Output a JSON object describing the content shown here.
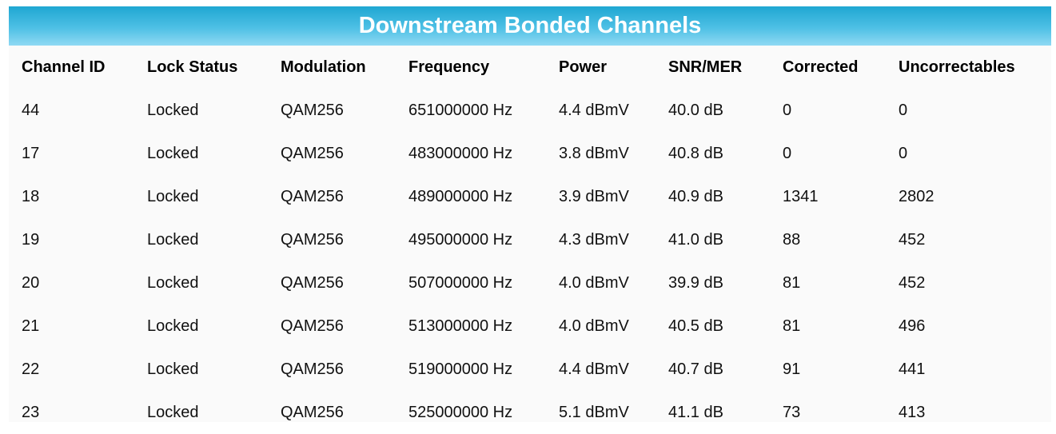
{
  "title": "Downstream Bonded Channels",
  "columns": [
    "Channel ID",
    "Lock Status",
    "Modulation",
    "Frequency",
    "Power",
    "SNR/MER",
    "Corrected",
    "Uncorrectables"
  ],
  "rows": [
    [
      "44",
      "Locked",
      "QAM256",
      "651000000 Hz",
      "4.4 dBmV",
      "40.0 dB",
      "0",
      "0"
    ],
    [
      "17",
      "Locked",
      "QAM256",
      "483000000 Hz",
      "3.8 dBmV",
      "40.8 dB",
      "0",
      "0"
    ],
    [
      "18",
      "Locked",
      "QAM256",
      "489000000 Hz",
      "3.9 dBmV",
      "40.9 dB",
      "1341",
      "2802"
    ],
    [
      "19",
      "Locked",
      "QAM256",
      "495000000 Hz",
      "4.3 dBmV",
      "41.0 dB",
      "88",
      "452"
    ],
    [
      "20",
      "Locked",
      "QAM256",
      "507000000 Hz",
      "4.0 dBmV",
      "39.9 dB",
      "81",
      "452"
    ],
    [
      "21",
      "Locked",
      "QAM256",
      "513000000 Hz",
      "4.0 dBmV",
      "40.5 dB",
      "81",
      "496"
    ],
    [
      "22",
      "Locked",
      "QAM256",
      "519000000 Hz",
      "4.4 dBmV",
      "40.7 dB",
      "91",
      "441"
    ],
    [
      "23",
      "Locked",
      "QAM256",
      "525000000 Hz",
      "5.1 dBmV",
      "41.1 dB",
      "73",
      "413"
    ]
  ],
  "colors": {
    "title_gradient_top": "#1fa7d2",
    "title_gradient_bottom": "#8fd9f3",
    "panel_background": "#fafafa"
  }
}
